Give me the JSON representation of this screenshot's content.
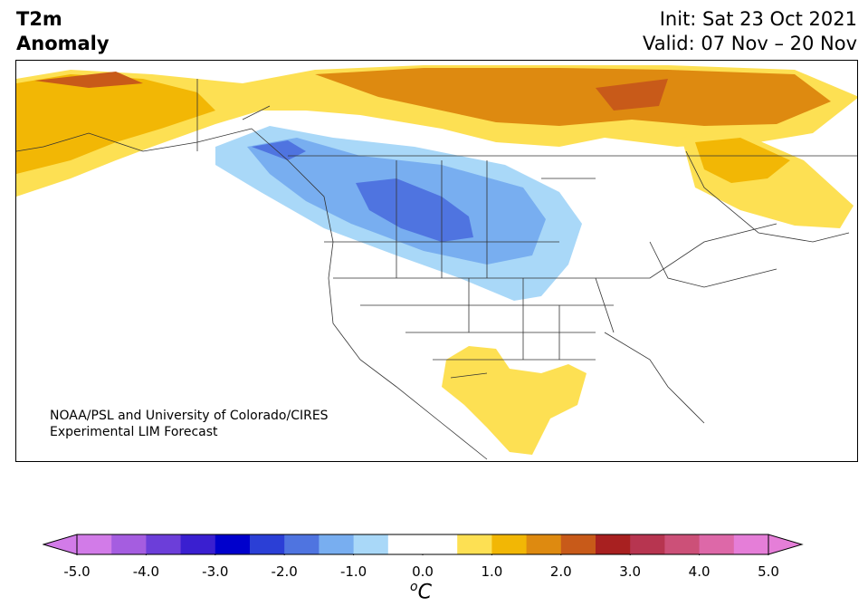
{
  "title": {
    "left_line1": "T2m",
    "left_line2": "Anomaly",
    "init": "Init: Sat 23 Oct 2021",
    "valid": "Valid: 07 Nov – 20 Nov"
  },
  "credit": {
    "line1": "NOAA/PSL and University of Colorado/CIRES",
    "line2": "Experimental LIM Forecast"
  },
  "colorbar": {
    "ticks": [
      "-5.0",
      "-4.0",
      "-3.0",
      "-2.0",
      "-1.0",
      "0.0",
      "1.0",
      "2.0",
      "3.0",
      "4.0",
      "5.0"
    ],
    "colors": [
      "#d27be8",
      "#a55de0",
      "#6c3ed9",
      "#3a1fd0",
      "#0000cc",
      "#2b3fd6",
      "#4f74e0",
      "#78aef0",
      "#a9d8f8",
      "#ffffff",
      "#ffffff",
      "#fde053",
      "#f2b705",
      "#de8a10",
      "#c85a19",
      "#a82020",
      "#b73550",
      "#cc5078",
      "#dd68a8",
      "#e57ed8"
    ],
    "under_color": "#d27be8",
    "over_color": "#e57ed8",
    "units_base": "C",
    "units_sup": "o"
  }
}
